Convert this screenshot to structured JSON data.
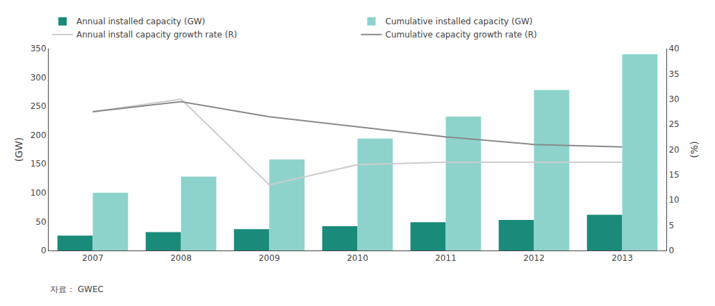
{
  "chart_data": {
    "type": "bar",
    "categories": [
      "2007",
      "2008",
      "2009",
      "2010",
      "2011",
      "2012",
      "2013"
    ],
    "series": [
      {
        "name": "Annual installed capacity (GW)",
        "type": "bar",
        "color": "#1a8a7a",
        "values": [
          26,
          32,
          37,
          42,
          49,
          53,
          62
        ]
      },
      {
        "name": "Cumulative installed capacity (GW)",
        "type": "bar",
        "color": "#8dd3cc",
        "values": [
          100,
          128,
          158,
          194,
          232,
          278,
          340
        ]
      },
      {
        "name": "Annual install capacity growth rate (R)",
        "type": "line",
        "axis": "y2",
        "color": "#cccccc",
        "values": [
          27.5,
          30,
          13,
          17,
          17.5,
          17.5,
          17.5
        ]
      },
      {
        "name": "Cumulative capacity growth rate (R)",
        "type": "line",
        "axis": "y2",
        "color": "#888888",
        "values": [
          27.5,
          29.5,
          26.5,
          24.5,
          22.5,
          21,
          20.5
        ]
      }
    ],
    "ylabel": "(GW)",
    "y2label": "(%)",
    "ylim": [
      0,
      350
    ],
    "yticks": [
      0,
      50,
      100,
      150,
      200,
      250,
      300,
      350
    ],
    "y2lim": [
      0,
      40
    ],
    "y2ticks": [
      0,
      5,
      10,
      15,
      20,
      25,
      30,
      35,
      40
    ],
    "grid": false,
    "legend": "upper left",
    "annotations": [
      "자료： GWEC"
    ]
  }
}
